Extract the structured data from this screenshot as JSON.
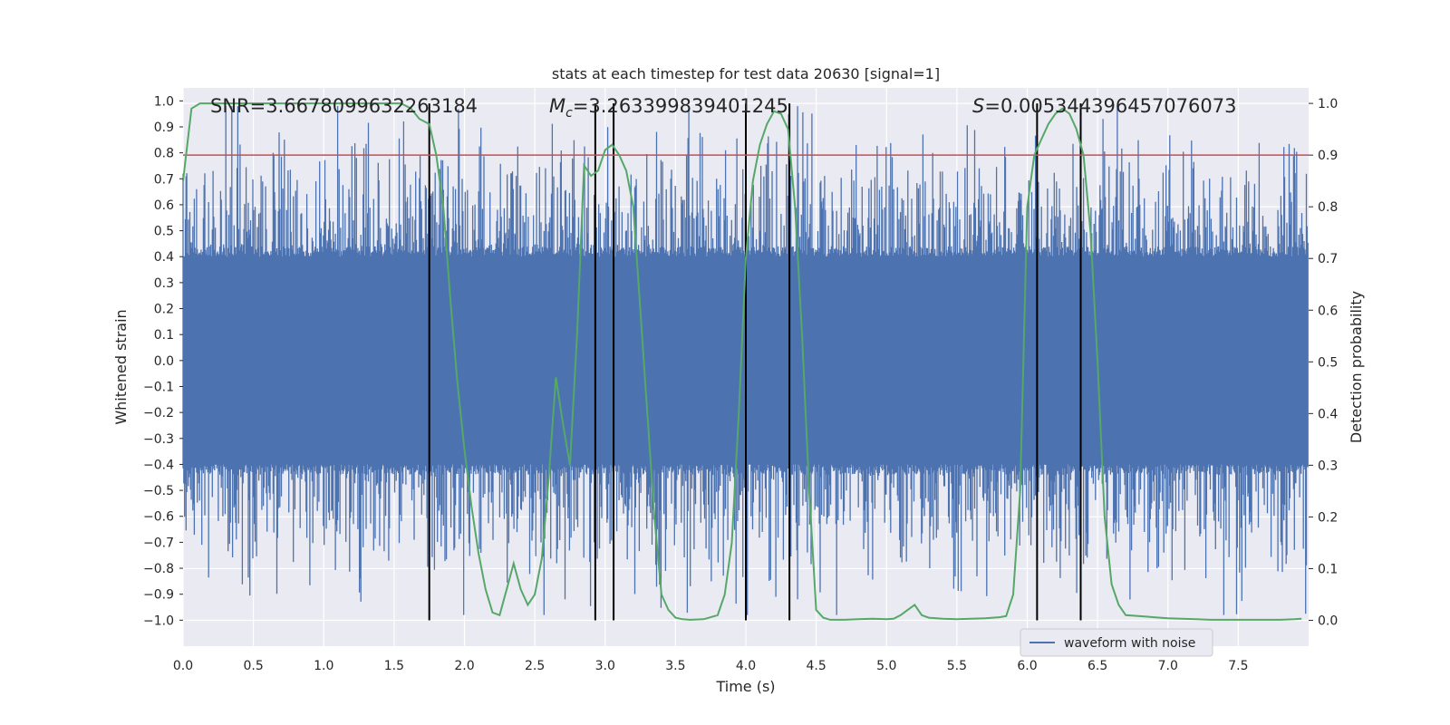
{
  "chart_data": {
    "type": "line",
    "title": "stats at each timestep for test data 20630 [signal=1]",
    "xlabel": "Time (s)",
    "ylabel_left": "Whitened strain",
    "ylabel_right": "Detection probability",
    "xlim": [
      0,
      8
    ],
    "ylim_left": [
      -1.1,
      1.05
    ],
    "ylim_right": [
      -0.05,
      1.03
    ],
    "x_ticks": [
      "0.0",
      "0.5",
      "1.0",
      "1.5",
      "2.0",
      "2.5",
      "3.0",
      "3.5",
      "4.0",
      "4.5",
      "5.0",
      "5.5",
      "6.0",
      "6.5",
      "7.0",
      "7.5"
    ],
    "y_ticks_left": [
      "1.0",
      "0.9",
      "0.8",
      "0.7",
      "0.6",
      "0.5",
      "0.4",
      "0.3",
      "0.2",
      "0.1",
      "0.0",
      "-0.1",
      "-0.2",
      "-0.3",
      "-0.4",
      "-0.5",
      "-0.6",
      "-0.7",
      "-0.8",
      "-0.9",
      "-1.0"
    ],
    "y_ticks_right": [
      "1.0",
      "0.9",
      "0.8",
      "0.7",
      "0.6",
      "0.5",
      "0.4",
      "0.3",
      "0.2",
      "0.1",
      "0.0"
    ],
    "grid": true,
    "background": "#eaeaf2",
    "annotations": {
      "snr": "SNR=3.6678099632263184",
      "mc_symbol": "M",
      "mc_sub": "c",
      "mc_value": "=3.263399839401245",
      "s_symbol": "S",
      "s_value": "=0.005344396457076073"
    },
    "legend": {
      "label": "waveform with noise",
      "position": "lower-right"
    },
    "colors": {
      "waveform": "#4c72b0",
      "probability": "#55a868",
      "threshold": "#c44e52",
      "markers": "#000000"
    },
    "threshold": 0.9,
    "vertical_lines": [
      1.75,
      2.93,
      3.06,
      4.0,
      4.31,
      6.07,
      6.38
    ],
    "waveform": {
      "name": "waveform with noise",
      "core_amplitude": 0.4,
      "note_series": "dense noisy strain trace between about -0.98 and 0.98"
    },
    "detection_probability": {
      "x": [
        0.0,
        0.06,
        0.12,
        0.2,
        0.3,
        0.5,
        0.8,
        1.0,
        1.2,
        1.4,
        1.55,
        1.62,
        1.68,
        1.75,
        1.8,
        1.85,
        1.9,
        1.95,
        2.0,
        2.05,
        2.1,
        2.15,
        2.2,
        2.25,
        2.3,
        2.35,
        2.4,
        2.45,
        2.5,
        2.55,
        2.6,
        2.65,
        2.7,
        2.75,
        2.8,
        2.85,
        2.9,
        2.95,
        3.0,
        3.05,
        3.1,
        3.15,
        3.2,
        3.25,
        3.3,
        3.35,
        3.4,
        3.45,
        3.5,
        3.55,
        3.6,
        3.7,
        3.8,
        3.85,
        3.9,
        3.95,
        4.0,
        4.05,
        4.1,
        4.15,
        4.2,
        4.25,
        4.3,
        4.35,
        4.4,
        4.45,
        4.5,
        4.55,
        4.6,
        4.7,
        4.8,
        4.9,
        5.0,
        5.05,
        5.1,
        5.15,
        5.2,
        5.25,
        5.3,
        5.4,
        5.5,
        5.6,
        5.7,
        5.8,
        5.85,
        5.9,
        5.95,
        6.0,
        6.05,
        6.1,
        6.15,
        6.2,
        6.25,
        6.3,
        6.35,
        6.4,
        6.45,
        6.5,
        6.55,
        6.6,
        6.65,
        6.7,
        6.8,
        6.9,
        7.0,
        7.1,
        7.2,
        7.3,
        7.4,
        7.5,
        7.6,
        7.7,
        7.8,
        7.9,
        7.95
      ],
      "y": [
        0.85,
        0.99,
        1.0,
        1.0,
        1.0,
        1.0,
        1.0,
        1.0,
        1.0,
        1.0,
        1.0,
        0.99,
        0.97,
        0.96,
        0.9,
        0.8,
        0.62,
        0.46,
        0.33,
        0.22,
        0.13,
        0.06,
        0.015,
        0.01,
        0.06,
        0.11,
        0.06,
        0.03,
        0.05,
        0.12,
        0.28,
        0.47,
        0.38,
        0.3,
        0.55,
        0.88,
        0.86,
        0.87,
        0.91,
        0.92,
        0.9,
        0.87,
        0.8,
        0.6,
        0.4,
        0.2,
        0.05,
        0.02,
        0.005,
        0.002,
        0.001,
        0.002,
        0.01,
        0.05,
        0.15,
        0.4,
        0.7,
        0.85,
        0.92,
        0.96,
        0.985,
        0.98,
        0.95,
        0.8,
        0.55,
        0.25,
        0.02,
        0.005,
        0.001,
        0.001,
        0.002,
        0.003,
        0.002,
        0.003,
        0.01,
        0.02,
        0.03,
        0.01,
        0.005,
        0.003,
        0.002,
        0.003,
        0.004,
        0.006,
        0.008,
        0.05,
        0.25,
        0.8,
        0.9,
        0.93,
        0.96,
        0.98,
        0.99,
        0.98,
        0.95,
        0.9,
        0.75,
        0.5,
        0.2,
        0.07,
        0.03,
        0.01,
        0.008,
        0.006,
        0.004,
        0.003,
        0.002,
        0.001,
        0.001,
        0.001,
        0.001,
        0.001,
        0.001,
        0.002,
        0.003
      ]
    }
  }
}
